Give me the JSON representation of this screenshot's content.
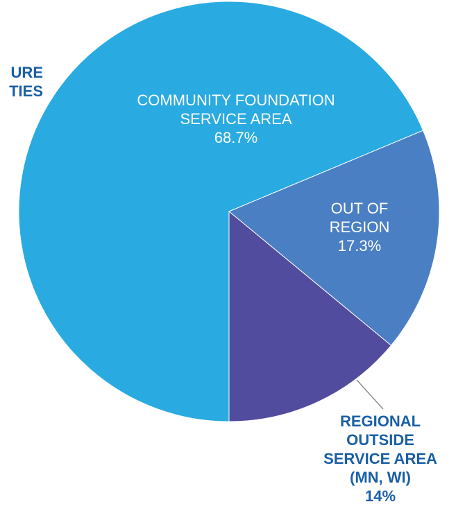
{
  "chart_data": {
    "type": "pie",
    "title": "",
    "slices": [
      {
        "label_lines": [
          "COMMUNITY FOUNDATION",
          "SERVICE AREA"
        ],
        "value_label": "68.7%",
        "value": 68.7,
        "color": "#29abe2",
        "label_color": "#ffffff"
      },
      {
        "label_lines": [
          "OUT OF",
          "REGION"
        ],
        "value_label": "17.3%",
        "value": 17.3,
        "color": "#4a7fc4",
        "label_color": "#ffffff"
      },
      {
        "label_lines": [
          "REGIONAL",
          "OUTSIDE",
          "SERVICE AREA",
          "(MN, WI)"
        ],
        "value_label": "14%",
        "value": 14,
        "color": "#524c9e",
        "label_color": "#1a5fa6"
      }
    ],
    "clipped_label_lines": [
      "URE",
      "TIES"
    ],
    "clipped_label_color": "#1a5fa6",
    "leader_line_color": "#8c8c8c"
  }
}
